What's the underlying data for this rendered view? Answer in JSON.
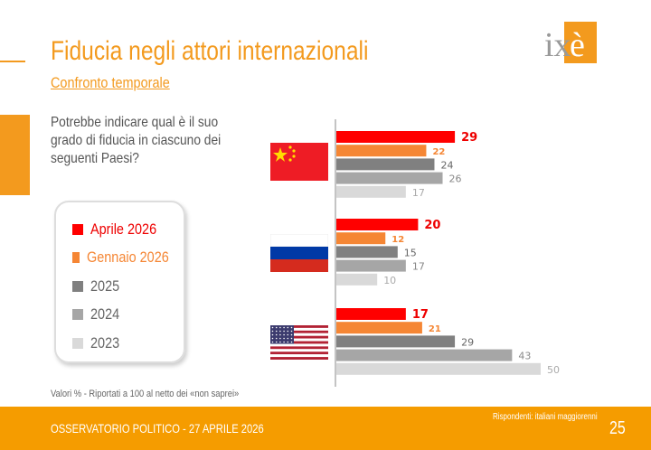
{
  "header": {
    "title": "Fiducia negli attori internazionali",
    "subtitle": "Confronto temporale",
    "logo_text": "ixè"
  },
  "question": "Potrebbe indicare qual è il suo grado di fiducia in ciascuno dei seguenti Paesi?",
  "note": "Valori % - Riportati a 100 al netto dei «non saprei»",
  "footer": {
    "label": "OSSERVATORIO POLITICO - 27 APRILE 2026",
    "respondents": "Rispondenti: italiani maggiorenni",
    "page": "25"
  },
  "chart_data": {
    "type": "bar",
    "orientation": "horizontal",
    "xlim": [
      0,
      50
    ],
    "categories": [
      "Cina",
      "Russia",
      "USA"
    ],
    "series": [
      {
        "name": "Aprile 2026",
        "color": "#FF0000",
        "values": [
          29,
          20,
          17
        ]
      },
      {
        "name": "Gennaio 2026",
        "color": "#F58634",
        "values": [
          22,
          12,
          21
        ]
      },
      {
        "name": "2025",
        "color": "#808080",
        "values": [
          24,
          15,
          29
        ]
      },
      {
        "name": "2024",
        "color": "#A6A6A6",
        "values": [
          26,
          17,
          43
        ]
      },
      {
        "name": "2023",
        "color": "#D9D9D9",
        "values": [
          17,
          10,
          50
        ]
      }
    ]
  }
}
